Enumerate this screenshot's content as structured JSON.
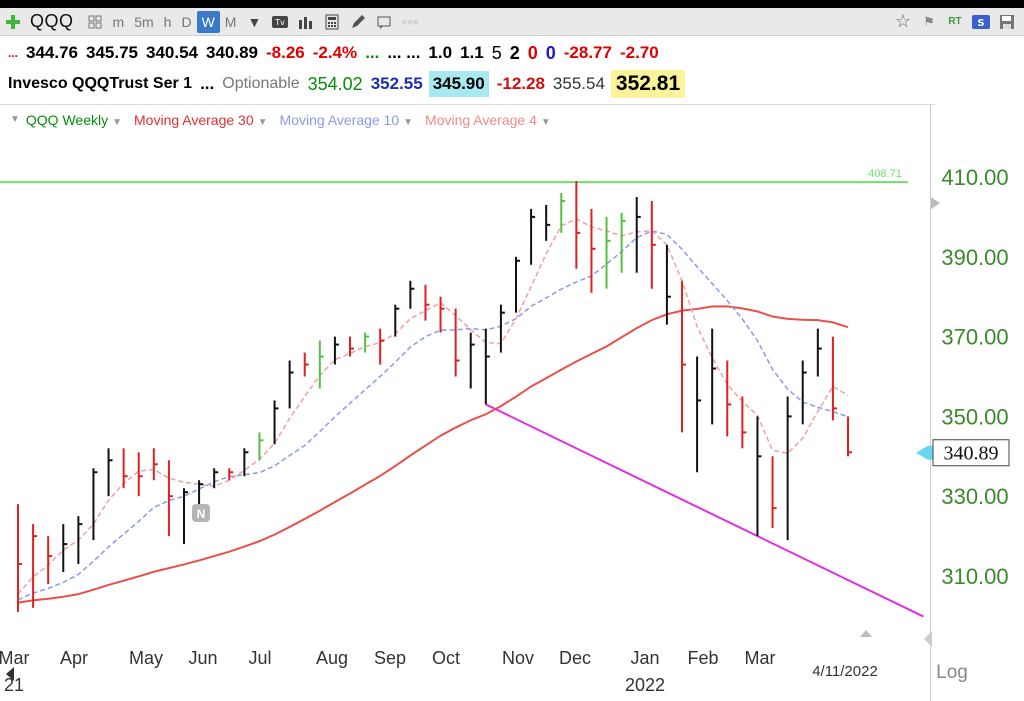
{
  "toolbar": {
    "symbol": "QQQ",
    "timeframes": [
      "m",
      "5m",
      "h",
      "D",
      "W",
      "M"
    ],
    "active_timeframe": "W"
  },
  "quote_row1": {
    "prefix": "...",
    "open": "344.76",
    "high": "345.75",
    "low": "340.54",
    "close": "340.89",
    "change": "-8.26",
    "change_pct": "-2.4%",
    "dots1": "...",
    "dots2": "... ...",
    "v1": "1.0",
    "v2": "1.1",
    "n1": "5",
    "n2": "2",
    "n3": "0",
    "n4": "0",
    "c1": "-28.77",
    "c2": "-2.70"
  },
  "quote_row2": {
    "name": "Invesco QQQTrust Ser 1",
    "dots": "...",
    "optionable": "Optionable",
    "p1": "354.02",
    "p2": "352.55",
    "p3": "345.90",
    "p4": "-12.28",
    "p5": "355.54",
    "p6": "352.81"
  },
  "studies": [
    {
      "label": "QQQ Weekly",
      "color": "#0a8a0a"
    },
    {
      "label": "Moving Average 30",
      "color": "#e03030"
    },
    {
      "label": "Moving Average 10",
      "color": "#8a9ae8"
    },
    {
      "label": "Moving Average 4",
      "color": "#f08a8a"
    }
  ],
  "colors": {
    "ma30": "#e8504a",
    "ma10": "#8a9ae8",
    "ma4": "#f0a0a0",
    "up_bar": "#55c040",
    "down_bar": "#e02020",
    "neutral_bar": "#111111",
    "resistance": "#6ee06e",
    "trendline": "#e030e0",
    "price_axis": "#3a8a2a"
  },
  "chart_data": {
    "type": "ohlc",
    "interval": "weekly",
    "price_ticks": [
      310,
      330,
      350,
      370,
      390,
      410
    ],
    "price_tick_labels": [
      "310.00",
      "330.00",
      "350.00",
      "370.00",
      "390.00",
      "410.00"
    ],
    "month_labels": [
      "Mar",
      "Apr",
      "May",
      "Jun",
      "Jul",
      "Aug",
      "Sep",
      "Oct",
      "Nov",
      "Dec",
      "Jan",
      "Feb",
      "Mar"
    ],
    "year_labels": [
      "21",
      "2022"
    ],
    "date_label": "4/11/2022",
    "last_price": 340.89,
    "last_price_label": "340.89",
    "resistance_level": 408.71,
    "resistance_label": "408.71",
    "scale_label": "Log",
    "news_marker": "N",
    "bars": [
      {
        "h": 328,
        "l": 301,
        "c": 313,
        "t": "d"
      },
      {
        "h": 323,
        "l": 302,
        "c": 320,
        "t": "d"
      },
      {
        "h": 320,
        "l": 308,
        "c": 315,
        "t": "d"
      },
      {
        "h": 323,
        "l": 311,
        "c": 318,
        "t": "n"
      },
      {
        "h": 325,
        "l": 313,
        "c": 323,
        "t": "n"
      },
      {
        "h": 337,
        "l": 319,
        "c": 336,
        "t": "n"
      },
      {
        "h": 342,
        "l": 330,
        "c": 339,
        "t": "n"
      },
      {
        "h": 342,
        "l": 332,
        "c": 335,
        "t": "d"
      },
      {
        "h": 341,
        "l": 330,
        "c": 335,
        "t": "d"
      },
      {
        "h": 342,
        "l": 334,
        "c": 338,
        "t": "d"
      },
      {
        "h": 339,
        "l": 320,
        "c": 330,
        "t": "d"
      },
      {
        "h": 332,
        "l": 318,
        "c": 331,
        "t": "n"
      },
      {
        "h": 334,
        "l": 327,
        "c": 333,
        "t": "n"
      },
      {
        "h": 337,
        "l": 332,
        "c": 336,
        "t": "n"
      },
      {
        "h": 337,
        "l": 334,
        "c": 336,
        "t": "d"
      },
      {
        "h": 342,
        "l": 335,
        "c": 341,
        "t": "n"
      },
      {
        "h": 346,
        "l": 339,
        "c": 344,
        "t": "u"
      },
      {
        "h": 354,
        "l": 343,
        "c": 352,
        "t": "n"
      },
      {
        "h": 364,
        "l": 352,
        "c": 361,
        "t": "n"
      },
      {
        "h": 366,
        "l": 360,
        "c": 363,
        "t": "d"
      },
      {
        "h": 369,
        "l": 357,
        "c": 365,
        "t": "u"
      },
      {
        "h": 370,
        "l": 363,
        "c": 368,
        "t": "n"
      },
      {
        "h": 370,
        "l": 365,
        "c": 367,
        "t": "d"
      },
      {
        "h": 371,
        "l": 366,
        "c": 370,
        "t": "u"
      },
      {
        "h": 372,
        "l": 363,
        "c": 369,
        "t": "d"
      },
      {
        "h": 378,
        "l": 370,
        "c": 377,
        "t": "n"
      },
      {
        "h": 384,
        "l": 377,
        "c": 382,
        "t": "n"
      },
      {
        "h": 383,
        "l": 374,
        "c": 378,
        "t": "d"
      },
      {
        "h": 380,
        "l": 371,
        "c": 377,
        "t": "d"
      },
      {
        "h": 377,
        "l": 360,
        "c": 364,
        "t": "d"
      },
      {
        "h": 371,
        "l": 357,
        "c": 368,
        "t": "n"
      },
      {
        "h": 372,
        "l": 353,
        "c": 365,
        "t": "n"
      },
      {
        "h": 378,
        "l": 366,
        "c": 376,
        "t": "n"
      },
      {
        "h": 390,
        "l": 376,
        "c": 389,
        "t": "n"
      },
      {
        "h": 402,
        "l": 388,
        "c": 400,
        "t": "n"
      },
      {
        "h": 403,
        "l": 394,
        "c": 398,
        "t": "n"
      },
      {
        "h": 406,
        "l": 396,
        "c": 404,
        "t": "u"
      },
      {
        "h": 409,
        "l": 387,
        "c": 396,
        "t": "d"
      },
      {
        "h": 402,
        "l": 381,
        "c": 392,
        "t": "d"
      },
      {
        "h": 400,
        "l": 382,
        "c": 394,
        "t": "u"
      },
      {
        "h": 401,
        "l": 386,
        "c": 399,
        "t": "u"
      },
      {
        "h": 405,
        "l": 386,
        "c": 400,
        "t": "n"
      },
      {
        "h": 404,
        "l": 382,
        "c": 393,
        "t": "d"
      },
      {
        "h": 393,
        "l": 373,
        "c": 380,
        "t": "n"
      },
      {
        "h": 384,
        "l": 346,
        "c": 363,
        "t": "d"
      },
      {
        "h": 365,
        "l": 336,
        "c": 354,
        "t": "n"
      },
      {
        "h": 372,
        "l": 348,
        "c": 362,
        "t": "n"
      },
      {
        "h": 364,
        "l": 345,
        "c": 353,
        "t": "d"
      },
      {
        "h": 355,
        "l": 342,
        "c": 346,
        "t": "d"
      },
      {
        "h": 350,
        "l": 320,
        "c": 340,
        "t": "n"
      },
      {
        "h": 340,
        "l": 322,
        "c": 327,
        "t": "d"
      },
      {
        "h": 355,
        "l": 319,
        "c": 350,
        "t": "n"
      },
      {
        "h": 364,
        "l": 348,
        "c": 361,
        "t": "n"
      },
      {
        "h": 372,
        "l": 360,
        "c": 367,
        "t": "n"
      },
      {
        "h": 370,
        "l": 349,
        "c": 352,
        "t": "d"
      },
      {
        "h": 350,
        "l": 340,
        "c": 341,
        "t": "d"
      }
    ]
  }
}
